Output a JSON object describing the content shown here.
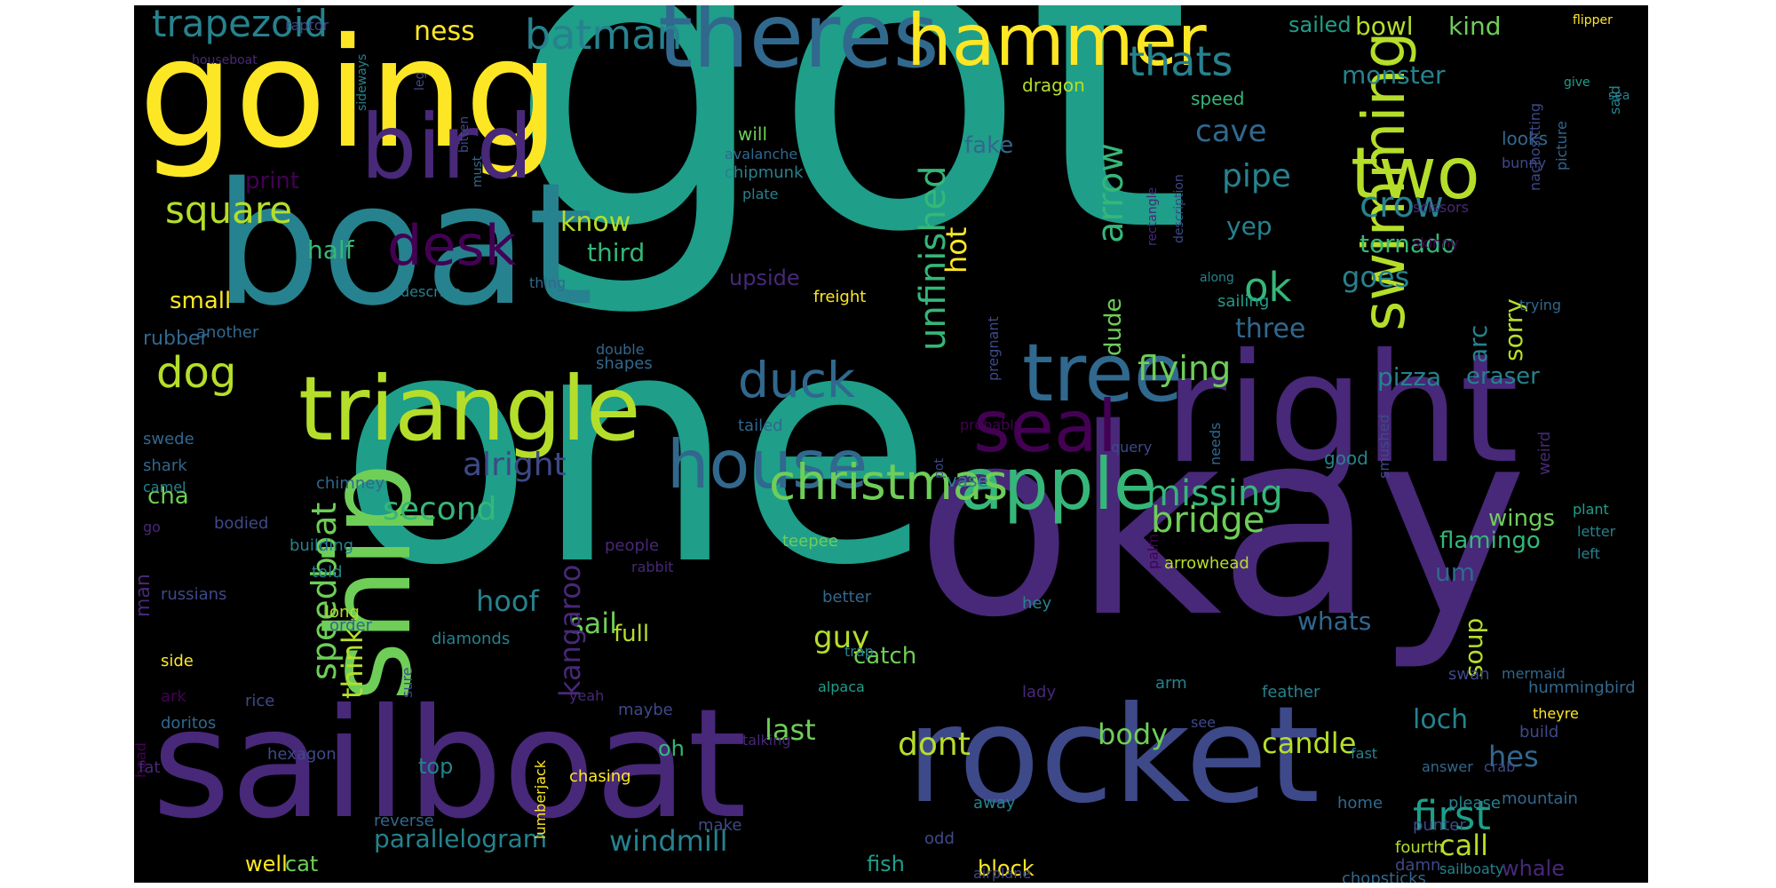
{
  "background": "#000000",
  "palette": {
    "yellow": "#fde725",
    "lime": "#b5de2b",
    "green": "#6ece58",
    "sea": "#35b779",
    "teal": "#1f9e89",
    "cyan": "#26828e",
    "blue": "#31688e",
    "indigo": "#3e4989",
    "violet": "#482878",
    "purple": "#440154"
  },
  "words": [
    {
      "text": "got",
      "color": "#1f9e89"
    },
    {
      "text": "one",
      "color": "#1f9e89"
    },
    {
      "text": "okay",
      "color": "#482878"
    },
    {
      "text": "sailboat",
      "color": "#482878"
    },
    {
      "text": "rocket",
      "color": "#3e4989"
    },
    {
      "text": "boat",
      "color": "#26828e"
    },
    {
      "text": "going",
      "color": "#fde725"
    },
    {
      "text": "right",
      "color": "#482878"
    },
    {
      "text": "ship",
      "color": "#6ece58"
    },
    {
      "text": "triangle",
      "color": "#b5de2b"
    },
    {
      "text": "bird",
      "color": "#482878"
    },
    {
      "text": "theres",
      "color": "#31688e"
    },
    {
      "text": "hammer",
      "color": "#fde725"
    },
    {
      "text": "tree",
      "color": "#31688e"
    },
    {
      "text": "apple",
      "color": "#35b779"
    },
    {
      "text": "house",
      "color": "#31688e"
    },
    {
      "text": "christmas",
      "color": "#6ece58"
    },
    {
      "text": "seal",
      "color": "#440154"
    },
    {
      "text": "two",
      "color": "#b5de2b"
    },
    {
      "text": "swimming",
      "color": "#b5de2b"
    },
    {
      "text": "desk",
      "color": "#440154"
    },
    {
      "text": "duck",
      "color": "#31688e"
    },
    {
      "text": "square",
      "color": "#b5de2b"
    },
    {
      "text": "dog",
      "color": "#b5de2b"
    },
    {
      "text": "unfinished",
      "color": "#35b779"
    },
    {
      "text": "trapezoid",
      "color": "#26828e"
    },
    {
      "text": "batman",
      "color": "#26828e"
    },
    {
      "text": "thats",
      "color": "#26828e"
    },
    {
      "text": "crow",
      "color": "#26828e"
    },
    {
      "text": "ok",
      "color": "#35b779"
    },
    {
      "text": "arrow",
      "color": "#35b779"
    },
    {
      "text": "first",
      "color": "#1f9e89"
    },
    {
      "text": "flying",
      "color": "#6ece58"
    },
    {
      "text": "speedboat",
      "color": "#6ece58"
    },
    {
      "text": "bridge",
      "color": "#6ece58"
    },
    {
      "text": "missing",
      "color": "#35b779"
    },
    {
      "text": "alright",
      "color": "#3e4989"
    },
    {
      "text": "second",
      "color": "#35b779"
    },
    {
      "text": "hoof",
      "color": "#26828e"
    },
    {
      "text": "sail",
      "color": "#6ece58"
    },
    {
      "text": "think",
      "color": "#b5de2b"
    },
    {
      "text": "kangaroo",
      "color": "#482878"
    },
    {
      "text": "guy",
      "color": "#b5de2b"
    },
    {
      "text": "dont",
      "color": "#b5de2b"
    },
    {
      "text": "body",
      "color": "#6ece58"
    },
    {
      "text": "candle",
      "color": "#b5de2b"
    },
    {
      "text": "hes",
      "color": "#31688e"
    },
    {
      "text": "loch",
      "color": "#26828e"
    },
    {
      "text": "last",
      "color": "#6ece58"
    },
    {
      "text": "windmill",
      "color": "#26828e"
    },
    {
      "text": "parallelogram",
      "color": "#26828e"
    },
    {
      "text": "call",
      "color": "#b5de2b"
    },
    {
      "text": "pipe",
      "color": "#26828e"
    },
    {
      "text": "cave",
      "color": "#31688e"
    },
    {
      "text": "yep",
      "color": "#26828e"
    },
    {
      "text": "goes",
      "color": "#26828e"
    },
    {
      "text": "tornado",
      "color": "#35b779"
    },
    {
      "text": "monster",
      "color": "#26828e"
    },
    {
      "text": "bowl",
      "color": "#b5de2b"
    },
    {
      "text": "kind",
      "color": "#6ece58"
    },
    {
      "text": "sorry",
      "color": "#b5de2b"
    },
    {
      "text": "arc",
      "color": "#26828e"
    },
    {
      "text": "three",
      "color": "#31688e"
    },
    {
      "text": "pizza",
      "color": "#26828e"
    },
    {
      "text": "eraser",
      "color": "#26828e"
    },
    {
      "text": "soup",
      "color": "#b5de2b"
    },
    {
      "text": "um",
      "color": "#31688e"
    },
    {
      "text": "whats",
      "color": "#31688e"
    },
    {
      "text": "flamingo",
      "color": "#35b779"
    },
    {
      "text": "wings",
      "color": "#6ece58"
    },
    {
      "text": "know",
      "color": "#b5de2b"
    },
    {
      "text": "third",
      "color": "#35b779"
    },
    {
      "text": "upside",
      "color": "#482878"
    },
    {
      "text": "hot",
      "color": "#fde725"
    },
    {
      "text": "fake",
      "color": "#31688e"
    },
    {
      "text": "dude",
      "color": "#6ece58"
    },
    {
      "text": "half",
      "color": "#35b779"
    },
    {
      "text": "print",
      "color": "#440154"
    },
    {
      "text": "small",
      "color": "#fde725"
    },
    {
      "text": "rubber",
      "color": "#31688e"
    },
    {
      "text": "cha",
      "color": "#6ece58"
    },
    {
      "text": "man",
      "color": "#482878"
    },
    {
      "text": "ness",
      "color": "#fde725"
    },
    {
      "text": "sailed",
      "color": "#1f9e89"
    },
    {
      "text": "full",
      "color": "#b5de2b"
    },
    {
      "text": "catch",
      "color": "#6ece58"
    },
    {
      "text": "oh",
      "color": "#35b779"
    },
    {
      "text": "top",
      "color": "#26828e"
    },
    {
      "text": "well",
      "color": "#fde725"
    },
    {
      "text": "cat",
      "color": "#6ece58"
    },
    {
      "text": "fish",
      "color": "#1f9e89"
    },
    {
      "text": "block",
      "color": "#fde725"
    },
    {
      "text": "whale",
      "color": "#482878"
    },
    {
      "text": "tail",
      "color": "#3e4989"
    },
    {
      "text": "speed",
      "color": "#35b779"
    },
    {
      "text": "dragon",
      "color": "#b5de2b"
    },
    {
      "text": "will",
      "color": "#6ece58"
    },
    {
      "text": "good",
      "color": "#26828e"
    },
    {
      "text": "looks",
      "color": "#31688e"
    },
    {
      "text": "vase",
      "color": "#26828e"
    },
    {
      "text": "chipmunk",
      "color": "#26828e"
    },
    {
      "text": "avalanche",
      "color": "#31688e"
    },
    {
      "text": "plate",
      "color": "#26828e"
    },
    {
      "text": "bunny",
      "color": "#3e4989"
    },
    {
      "text": "nacho",
      "color": "#3e4989"
    },
    {
      "text": "sitting",
      "color": "#3e4989"
    },
    {
      "text": "picture",
      "color": "#31688e"
    },
    {
      "text": "said",
      "color": "#26828e"
    },
    {
      "text": "sea",
      "color": "#26828e"
    },
    {
      "text": "flipper",
      "color": "#fde725"
    },
    {
      "text": "give",
      "color": "#1f9e89"
    },
    {
      "text": "raptor",
      "color": "#3e4989"
    },
    {
      "text": "houseboat",
      "color": "#482878"
    },
    {
      "text": "sideways",
      "color": "#26828e"
    },
    {
      "text": "leg",
      "color": "#3e4989"
    },
    {
      "text": "bitten",
      "color": "#3e4989"
    },
    {
      "text": "must",
      "color": "#31688e"
    },
    {
      "text": "scissors",
      "color": "#482878"
    },
    {
      "text": "skinny",
      "color": "#440154"
    },
    {
      "text": "description",
      "color": "#3e4989"
    },
    {
      "text": "rectangle",
      "color": "#482878"
    },
    {
      "text": "along",
      "color": "#26828e"
    },
    {
      "text": "sailing",
      "color": "#1f9e89"
    },
    {
      "text": "freight",
      "color": "#fde725"
    },
    {
      "text": "thing",
      "color": "#31688e"
    },
    {
      "text": "describe",
      "color": "#26828e"
    },
    {
      "text": "double",
      "color": "#31688e"
    },
    {
      "text": "shapes",
      "color": "#31688e"
    },
    {
      "text": "tailed",
      "color": "#31688e"
    },
    {
      "text": "pregnant",
      "color": "#3e4989"
    },
    {
      "text": "probably",
      "color": "#440154"
    },
    {
      "text": "pot",
      "color": "#3e4989"
    },
    {
      "text": "query",
      "color": "#3e4989"
    },
    {
      "text": "needs",
      "color": "#31688e"
    },
    {
      "text": "smushed",
      "color": "#3e4989"
    },
    {
      "text": "weird",
      "color": "#482878"
    },
    {
      "text": "plant",
      "color": "#1f9e89"
    },
    {
      "text": "letter",
      "color": "#26828e"
    },
    {
      "text": "left",
      "color": "#26828e"
    },
    {
      "text": "trying",
      "color": "#31688e"
    },
    {
      "text": "chimney",
      "color": "#31688e"
    },
    {
      "text": "teepee",
      "color": "#6ece58"
    },
    {
      "text": "people",
      "color": "#482878"
    },
    {
      "text": "rabbit",
      "color": "#482878"
    },
    {
      "text": "arrowhead",
      "color": "#b5de2b"
    },
    {
      "text": "palm",
      "color": "#440154"
    },
    {
      "text": "hey",
      "color": "#26828e"
    },
    {
      "text": "better",
      "color": "#31688e"
    },
    {
      "text": "building",
      "color": "#26828e"
    },
    {
      "text": "told",
      "color": "#26828e"
    },
    {
      "text": "long",
      "color": "#b5de2b"
    },
    {
      "text": "russians",
      "color": "#3e4989"
    },
    {
      "text": "order",
      "color": "#31688e"
    },
    {
      "text": "diamonds",
      "color": "#26828e"
    },
    {
      "text": "sure",
      "color": "#3e4989"
    },
    {
      "text": "yeah",
      "color": "#482878"
    },
    {
      "text": "trap",
      "color": "#26828e"
    },
    {
      "text": "alpaca",
      "color": "#1f9e89"
    },
    {
      "text": "maybe",
      "color": "#3e4989"
    },
    {
      "text": "talking",
      "color": "#482878"
    },
    {
      "text": "chasing",
      "color": "#fde725"
    },
    {
      "text": "lumberjack",
      "color": "#fde725"
    },
    {
      "text": "reverse",
      "color": "#31688e"
    },
    {
      "text": "make",
      "color": "#3e4989"
    },
    {
      "text": "away",
      "color": "#26828e"
    },
    {
      "text": "odd",
      "color": "#3e4989"
    },
    {
      "text": "airplane",
      "color": "#3e4989"
    },
    {
      "text": "chopsticks",
      "color": "#31688e"
    },
    {
      "text": "damn",
      "color": "#3e4989"
    },
    {
      "text": "fourth",
      "color": "#b5de2b"
    },
    {
      "text": "home",
      "color": "#31688e"
    },
    {
      "text": "sailboaty",
      "color": "#26828e"
    },
    {
      "text": "punter",
      "color": "#3e4989"
    },
    {
      "text": "mountain",
      "color": "#31688e"
    },
    {
      "text": "please",
      "color": "#26828e"
    },
    {
      "text": "answer",
      "color": "#31688e"
    },
    {
      "text": "crab",
      "color": "#3e4989"
    },
    {
      "text": "build",
      "color": "#3e4989"
    },
    {
      "text": "fast",
      "color": "#26828e"
    },
    {
      "text": "see",
      "color": "#3e4989"
    },
    {
      "text": "mermaid",
      "color": "#31688e"
    },
    {
      "text": "theyre",
      "color": "#fde725"
    },
    {
      "text": "hummingbird",
      "color": "#31688e"
    },
    {
      "text": "feather",
      "color": "#26828e"
    },
    {
      "text": "arm",
      "color": "#26828e"
    },
    {
      "text": "lady",
      "color": "#482878"
    },
    {
      "text": "swan",
      "color": "#3e4989"
    },
    {
      "text": "head",
      "color": "#440154"
    },
    {
      "text": "fat",
      "color": "#482878"
    },
    {
      "text": "hexagon",
      "color": "#3e4989"
    },
    {
      "text": "doritos",
      "color": "#31688e"
    },
    {
      "text": "ark",
      "color": "#440154"
    },
    {
      "text": "rice",
      "color": "#3e4989"
    },
    {
      "text": "side",
      "color": "#fde725"
    },
    {
      "text": "shark",
      "color": "#31688e"
    },
    {
      "text": "swede",
      "color": "#31688e"
    },
    {
      "text": "camel",
      "color": "#26828e"
    },
    {
      "text": "go",
      "color": "#482878"
    },
    {
      "text": "bodied",
      "color": "#3e4989"
    },
    {
      "text": "another",
      "color": "#31688e"
    }
  ]
}
